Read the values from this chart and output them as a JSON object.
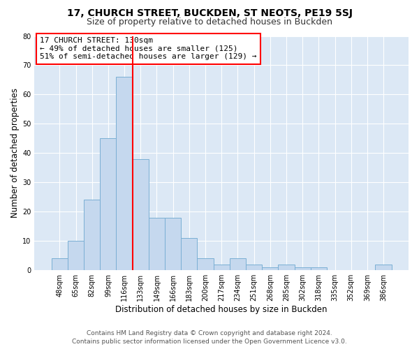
{
  "title": "17, CHURCH STREET, BUCKDEN, ST NEOTS, PE19 5SJ",
  "subtitle": "Size of property relative to detached houses in Buckden",
  "xlabel": "Distribution of detached houses by size in Buckden",
  "ylabel": "Number of detached properties",
  "bar_labels": [
    "48sqm",
    "65sqm",
    "82sqm",
    "99sqm",
    "116sqm",
    "133sqm",
    "149sqm",
    "166sqm",
    "183sqm",
    "200sqm",
    "217sqm",
    "234sqm",
    "251sqm",
    "268sqm",
    "285sqm",
    "302sqm",
    "318sqm",
    "335sqm",
    "352sqm",
    "369sqm",
    "386sqm"
  ],
  "bar_values": [
    4,
    10,
    24,
    45,
    66,
    38,
    18,
    18,
    11,
    4,
    2,
    4,
    2,
    1,
    2,
    1,
    1,
    0,
    0,
    0,
    2
  ],
  "bar_color": "#c5d8ee",
  "bar_edge_color": "#7aafd4",
  "vline_x": 4.5,
  "vline_color": "red",
  "ylim": [
    0,
    80
  ],
  "yticks": [
    0,
    10,
    20,
    30,
    40,
    50,
    60,
    70,
    80
  ],
  "annotation_title": "17 CHURCH STREET: 130sqm",
  "annotation_line1": "← 49% of detached houses are smaller (125)",
  "annotation_line2": "51% of semi-detached houses are larger (129) →",
  "annotation_box_color": "#ffffff",
  "annotation_border_color": "red",
  "footer_line1": "Contains HM Land Registry data © Crown copyright and database right 2024.",
  "footer_line2": "Contains public sector information licensed under the Open Government Licence v3.0.",
  "fig_bg_color": "#ffffff",
  "plot_bg_color": "#dce8f5",
  "grid_color": "#ffffff",
  "title_fontsize": 10,
  "subtitle_fontsize": 9,
  "axis_label_fontsize": 8.5,
  "tick_fontsize": 7,
  "annotation_fontsize": 8,
  "footer_fontsize": 6.5
}
